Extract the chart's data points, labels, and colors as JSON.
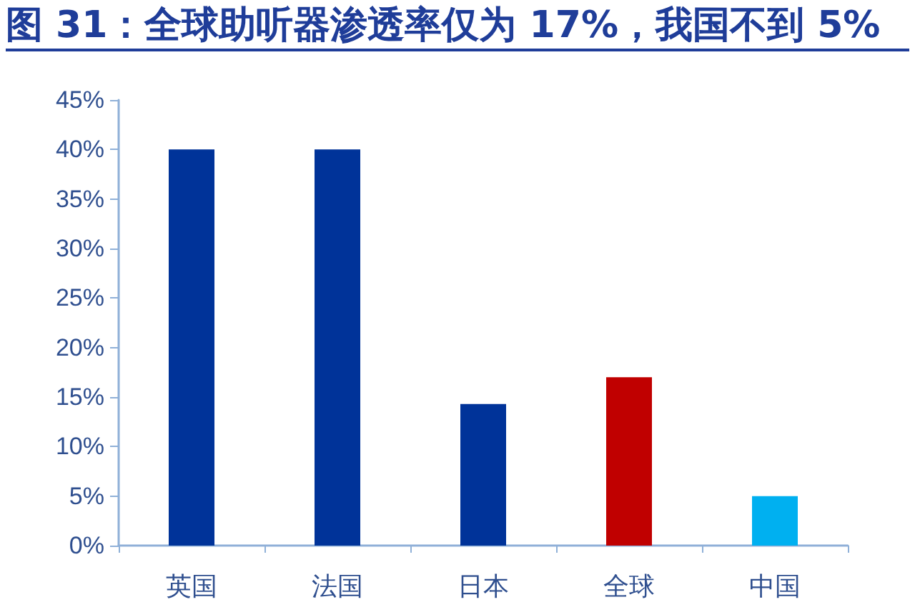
{
  "chart_data": {
    "type": "bar",
    "title": "图 31：全球助听器渗透率仅为 17%，我国不到 5%",
    "categories": [
      "英国",
      "法国",
      "日本",
      "全球",
      "中国"
    ],
    "values": [
      40,
      40,
      14.3,
      17,
      5
    ],
    "colors": [
      "#003399",
      "#003399",
      "#003399",
      "#c00000",
      "#00b0f0"
    ],
    "ylim": [
      0,
      45
    ],
    "yticks": [
      {
        "value": 0,
        "label": "0%"
      },
      {
        "value": 5,
        "label": "5%"
      },
      {
        "value": 10,
        "label": "10%"
      },
      {
        "value": 15,
        "label": "15%"
      },
      {
        "value": 20,
        "label": "20%"
      },
      {
        "value": 25,
        "label": "25%"
      },
      {
        "value": 30,
        "label": "30%"
      },
      {
        "value": 35,
        "label": "35%"
      },
      {
        "value": 40,
        "label": "40%"
      },
      {
        "value": 45,
        "label": "45%"
      }
    ],
    "grid": false
  }
}
